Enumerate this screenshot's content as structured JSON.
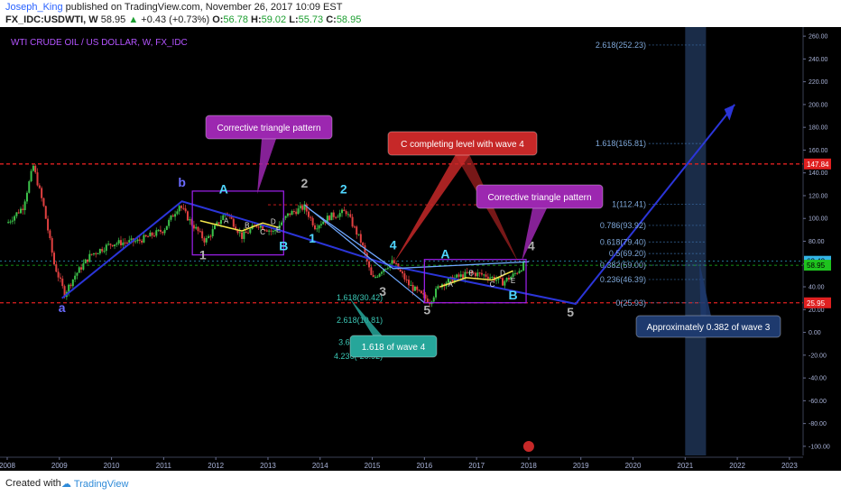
{
  "header": {
    "user": "Joseph_King",
    "published": "published on TradingView.com, November 26, 2017 10:09 EST",
    "symbol": "FX_IDC:USDWTI, W",
    "last": "58.95",
    "change": "+0.43 (+0.73%)",
    "o_label": "O:",
    "o": "56.78",
    "h_label": "H:",
    "h": "59.02",
    "l_label": "L:",
    "l": "55.73",
    "c_label": "C:",
    "c": "58.95"
  },
  "footer": {
    "created": "Created with",
    "brand": "TradingView"
  },
  "chart_data": {
    "type": "candlestick",
    "title": "WTI CRUDE OIL / US DOLLAR, W, FX_IDC",
    "x_ticks": [
      "2008",
      "2009",
      "2010",
      "2011",
      "2012",
      "2013",
      "2014",
      "2015",
      "2016",
      "2017",
      "2018",
      "2019",
      "2020",
      "2021",
      "2022",
      "2023"
    ],
    "y_ticks": [
      "260.00",
      "240.00",
      "220.00",
      "200.00",
      "180.00",
      "160.00",
      "140.00",
      "120.00",
      "100.00",
      "80.00",
      "60.00",
      "40.00",
      "20.00",
      "0.00",
      "-20.00",
      "-40.00",
      "-60.00",
      "-80.00",
      "-100.00"
    ],
    "ylim": [
      -100,
      260
    ],
    "xlim": [
      2008.0,
      2023.4
    ],
    "price_path": [
      [
        2008.0,
        96
      ],
      [
        2008.3,
        110
      ],
      [
        2008.5,
        146
      ],
      [
        2008.7,
        110
      ],
      [
        2008.9,
        60
      ],
      [
        2009.1,
        34
      ],
      [
        2009.3,
        50
      ],
      [
        2009.6,
        68
      ],
      [
        2010.0,
        78
      ],
      [
        2010.5,
        80
      ],
      [
        2011.0,
        90
      ],
      [
        2011.3,
        112
      ],
      [
        2011.5,
        98
      ],
      [
        2011.8,
        80
      ],
      [
        2012.2,
        106
      ],
      [
        2012.5,
        84
      ],
      [
        2012.8,
        95
      ],
      [
        2013.1,
        88
      ],
      [
        2013.4,
        104
      ],
      [
        2013.7,
        110
      ],
      [
        2013.9,
        93
      ],
      [
        2014.2,
        102
      ],
      [
        2014.5,
        106
      ],
      [
        2014.8,
        78
      ],
      [
        2015.0,
        46
      ],
      [
        2015.2,
        56
      ],
      [
        2015.4,
        62
      ],
      [
        2015.7,
        42
      ],
      [
        2015.9,
        34
      ],
      [
        2016.1,
        27
      ],
      [
        2016.3,
        42
      ],
      [
        2016.6,
        48
      ],
      [
        2016.9,
        52
      ],
      [
        2017.2,
        50
      ],
      [
        2017.5,
        44
      ],
      [
        2017.7,
        50
      ],
      [
        2017.9,
        58.95
      ]
    ],
    "horizontal_levels": [
      {
        "label": "147.84",
        "value": 147.84,
        "color": "#e02020"
      },
      {
        "label": "25.95",
        "value": 25.95,
        "color": "#e02020"
      }
    ],
    "price_labels": [
      {
        "label": "62.42",
        "value": 62.42,
        "color": "#33b5e5"
      },
      {
        "label": "58.95",
        "value": 58.95,
        "color": "#1ec21e"
      }
    ],
    "fib_extension": [
      {
        "label": "2.618(252.23)",
        "value": 252.23
      },
      {
        "label": "1.618(165.81)",
        "value": 165.81
      },
      {
        "label": "1(112.41)",
        "value": 112.41
      },
      {
        "label": "0.786(93.92)",
        "value": 93.92
      },
      {
        "label": "0.618(79.40)",
        "value": 79.4
      },
      {
        "label": "0.5(69.20)",
        "value": 69.2
      },
      {
        "label": "0.382(59.00)",
        "value": 59.0
      },
      {
        "label": "0.236(46.39)",
        "value": 46.39
      },
      {
        "label": "0(25.93)",
        "value": 25.93
      }
    ],
    "fib_wave4": [
      {
        "label": "1.618(30.42)",
        "value": 30.42
      },
      {
        "label": "2.618(10.81)",
        "value": 10.81
      },
      {
        "label": "3.618(-8.80)",
        "value": -8.8
      },
      {
        "label": "4.236(-20.92)",
        "value": -20.92
      }
    ],
    "wave_labels": [
      {
        "text": "a",
        "x": 2009.05,
        "y": 18,
        "color": "#6b6bff"
      },
      {
        "text": "b",
        "x": 2011.35,
        "y": 128,
        "color": "#6b6bff"
      },
      {
        "text": "A",
        "x": 2012.15,
        "y": 122,
        "color": "#4fd6ff"
      },
      {
        "text": "B",
        "x": 2013.3,
        "y": 72,
        "color": "#4fd6ff"
      },
      {
        "text": "1",
        "x": 2011.75,
        "y": 64,
        "color": "#b0b0b0"
      },
      {
        "text": "1",
        "x": 2013.85,
        "y": 79,
        "color": "#4fd6ff"
      },
      {
        "text": "2",
        "x": 2013.7,
        "y": 127,
        "color": "#b0b0b0"
      },
      {
        "text": "2",
        "x": 2014.45,
        "y": 122,
        "color": "#4fd6ff"
      },
      {
        "text": "3",
        "x": 2015.2,
        "y": 32,
        "color": "#b0b0b0"
      },
      {
        "text": "4",
        "x": 2015.4,
        "y": 73,
        "color": "#4fd6ff"
      },
      {
        "text": "5",
        "x": 2016.05,
        "y": 16,
        "color": "#b0b0b0"
      },
      {
        "text": "A",
        "x": 2016.4,
        "y": 65,
        "color": "#4fd6ff"
      },
      {
        "text": "B",
        "x": 2017.7,
        "y": 29,
        "color": "#4fd6ff"
      },
      {
        "text": "4",
        "x": 2018.05,
        "y": 72,
        "color": "#b0b0b0"
      },
      {
        "text": "5",
        "x": 2018.8,
        "y": 14,
        "color": "#b0b0b0"
      }
    ],
    "small_labels": [
      "A",
      "B",
      "C",
      "D",
      "E",
      "A",
      "B",
      "C",
      "D",
      "E"
    ],
    "callouts": [
      {
        "text": "Corrective triangle pattern",
        "color": "#9c27b0"
      },
      {
        "text": "C completing level with wave 4",
        "color": "#c62828"
      },
      {
        "text": "Corrective triangle pattern",
        "color": "#9c27b0"
      },
      {
        "text": "1.618 of wave 4",
        "color": "#26a69a"
      },
      {
        "text": "Approximately 0.382 of wave 3",
        "color": "#1e3a6e"
      }
    ]
  }
}
